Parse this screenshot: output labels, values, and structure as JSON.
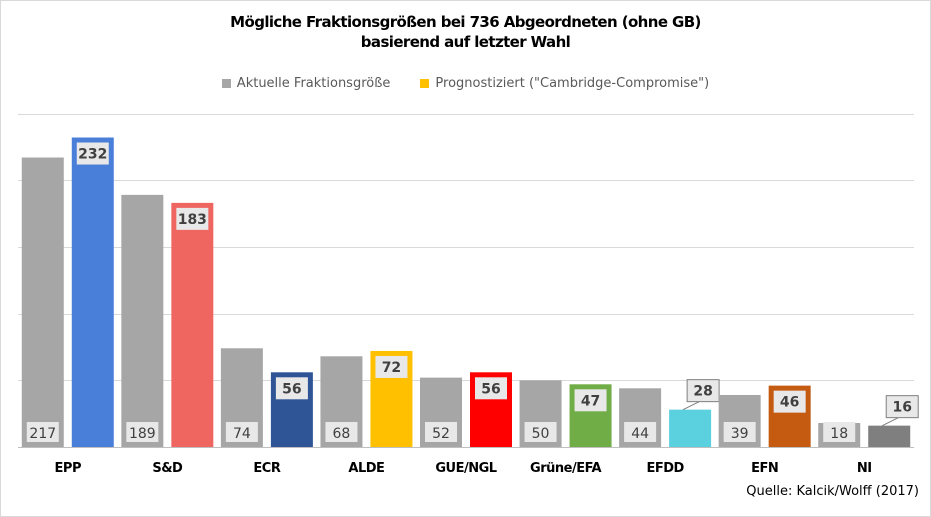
{
  "chart_data": {
    "type": "bar",
    "title_line1": "Mögliche Fraktionsgrößen bei 736 Abgeordneten (ohne GB)",
    "title_line2": "basierend auf letzter Wahl",
    "categories": [
      "EPP",
      "S&D",
      "ECR",
      "ALDE",
      "GUE/NGL",
      "Grüne/EFA",
      "EFDD",
      "EFN",
      "NI"
    ],
    "series": [
      {
        "name": "Aktuelle Fraktionsgröße",
        "color": "#a6a6a6",
        "values": [
          217,
          189,
          74,
          68,
          52,
          50,
          44,
          39,
          18
        ]
      },
      {
        "name": "Prognostiziert (\"Cambridge-Compromise\")",
        "color": "#ffc000",
        "values": [
          232,
          183,
          56,
          72,
          56,
          47,
          28,
          46,
          16
        ],
        "point_colors": [
          "#4a7fd9",
          "#ef6661",
          "#2f5597",
          "#ffc000",
          "#ff0000",
          "#70ad47",
          "#5bd0de",
          "#c55a11",
          "#7f7f7f"
        ]
      }
    ],
    "ylim": [
      0,
      250
    ],
    "grid": true,
    "legend_position": "top",
    "source": "Quelle: Kalcik/Wolff (2017)"
  }
}
